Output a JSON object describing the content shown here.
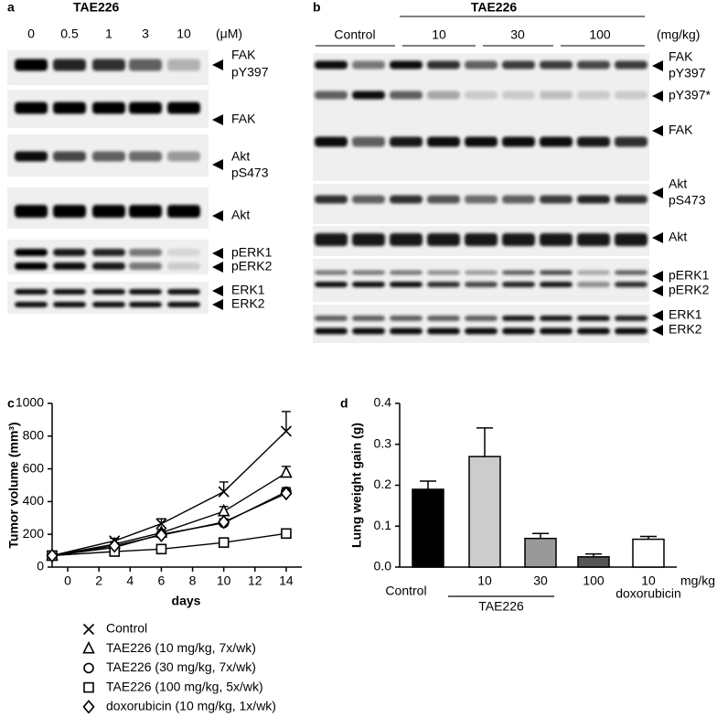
{
  "panel_a": {
    "label": "a",
    "title": "TAE226",
    "lanes": [
      "0",
      "0.5",
      "1",
      "3",
      "10"
    ],
    "unit": "(μM)",
    "rows": [
      {
        "labels": [
          "FAK",
          "pY397"
        ]
      },
      {
        "labels": [
          "FAK"
        ]
      },
      {
        "labels": [
          "Akt",
          "pS473"
        ]
      },
      {
        "labels": [
          "Akt"
        ]
      },
      {
        "labels": [
          "pERK1",
          "pERK2"
        ]
      },
      {
        "labels": [
          "ERK1",
          "ERK2"
        ]
      }
    ]
  },
  "panel_b": {
    "label": "b",
    "title": "TAE226",
    "groups": [
      "Control",
      "10",
      "30",
      "100"
    ],
    "unit": "(mg/kg)",
    "rows": [
      {
        "labels": [
          "FAK",
          "pY397"
        ]
      },
      {
        "labels": [
          "pY397*"
        ]
      },
      {
        "labels": [
          "FAK"
        ]
      },
      {
        "labels": [
          "Akt",
          "pS473"
        ]
      },
      {
        "labels": [
          "Akt"
        ]
      },
      {
        "labels": [
          "pERK1",
          "pERK2"
        ]
      },
      {
        "labels": [
          "ERK1",
          "ERK2"
        ]
      }
    ]
  },
  "chart_data": [
    {
      "type": "line",
      "panel_label": "c",
      "x_label": "days",
      "y_label": "Tumor volume (mm³)",
      "x": [
        -1,
        3,
        6,
        10,
        14
      ],
      "xlim": [
        -1,
        15
      ],
      "xticks": [
        0,
        2,
        4,
        6,
        8,
        10,
        12,
        14
      ],
      "ylim": [
        0,
        1000
      ],
      "yticks": [
        0,
        200,
        400,
        600,
        800,
        1000
      ],
      "series": [
        {
          "name": "Control",
          "marker": "x",
          "color": "#000000",
          "values": [
            70,
            160,
            265,
            460,
            830
          ],
          "errors": [
            null,
            15,
            30,
            60,
            120
          ]
        },
        {
          "name": "TAE226 (10 mg/kg, 7x/wk)",
          "marker": "triangle",
          "color": "#000000",
          "values": [
            70,
            140,
            210,
            340,
            575
          ],
          "errors": [
            null,
            10,
            20,
            30,
            40
          ]
        },
        {
          "name": "TAE226 (30 mg/kg, 7x/wk)",
          "marker": "circle",
          "color": "#000000",
          "values": [
            70,
            120,
            200,
            270,
            460
          ],
          "errors": [
            null,
            10,
            15,
            20,
            25
          ]
        },
        {
          "name": "TAE226 (100 mg/kg, 5x/wk)",
          "marker": "square",
          "color": "#000000",
          "values": [
            70,
            95,
            110,
            150,
            205
          ],
          "errors": [
            null,
            8,
            10,
            12,
            15
          ]
        },
        {
          "name": "doxorubicin (10 mg/kg, 1x/wk)",
          "marker": "diamond",
          "color": "#000000",
          "values": [
            70,
            130,
            195,
            275,
            450
          ],
          "errors": [
            null,
            10,
            15,
            20,
            25
          ]
        }
      ]
    },
    {
      "type": "bar",
      "panel_label": "d",
      "y_label": "Lung weight gain (g)",
      "categories": [
        "Control",
        "10",
        "30",
        "100",
        "10"
      ],
      "values": [
        0.19,
        0.27,
        0.07,
        0.025,
        0.068
      ],
      "errors": [
        0.02,
        0.07,
        0.012,
        0.007,
        0.007
      ],
      "colors": [
        "#000000",
        "#cccccc",
        "#999999",
        "#555555",
        "#ffffff"
      ],
      "ylim": [
        0,
        0.4
      ],
      "yticks": [
        {
          "value": 0,
          "label": "0.0"
        },
        0.1,
        0.2,
        0.3,
        0.4
      ],
      "unit_label": "mg/kg",
      "group_labels": [
        "TAE226",
        "doxorubicin"
      ]
    }
  ]
}
